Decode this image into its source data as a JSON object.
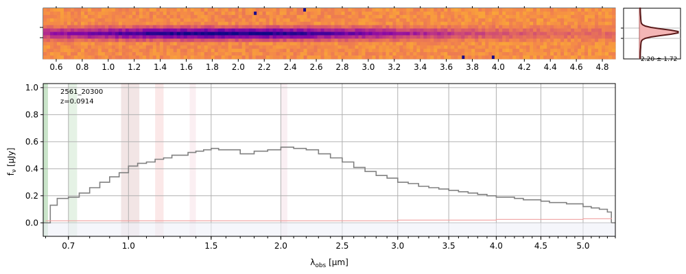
{
  "chart_data": [
    {
      "type": "heatmap",
      "panel": "2d-spectrum",
      "x_tick_labels": [
        "0.6",
        "0.8",
        "1.0",
        "1.2",
        "1.4",
        "1.6",
        "1.8",
        "2.0",
        "2.2",
        "2.4",
        "2.6",
        "2.8",
        "3.0",
        "3.2",
        "3.4",
        "3.6",
        "3.8",
        "4.0",
        "4.2",
        "4.4",
        "4.6",
        "4.8"
      ],
      "x_tick_values": [
        0.6,
        0.8,
        1.0,
        1.2,
        1.4,
        1.6,
        1.8,
        2.0,
        2.2,
        2.4,
        2.6,
        2.8,
        3.0,
        3.2,
        3.4,
        3.6,
        3.8,
        4.0,
        4.2,
        4.4,
        4.6,
        4.8
      ],
      "xlim": [
        0.5,
        4.9
      ],
      "colormap": "plasma",
      "trace_peak_at": 1.9
    },
    {
      "type": "area",
      "panel": "profile",
      "annotation": "2.20 ± 1.72",
      "fill_color": "#f4b6b6",
      "line_color": "#5a1a1a"
    },
    {
      "type": "line",
      "panel": "1d-spectrum",
      "label_id": "2561_20300",
      "label_z": "z=0.0914",
      "ylabel_f": "f",
      "ylabel_sub": "ν",
      "ylabel_unit": "[μJy]",
      "xlabel_sym": "λ",
      "xlabel_sub": "obs",
      "xlabel_unit": "[μm]",
      "y_ticks": [
        "0.0",
        "0.2",
        "0.4",
        "0.6",
        "0.8",
        "1.0"
      ],
      "y_tick_values": [
        0.0,
        0.2,
        0.4,
        0.6,
        0.8,
        1.0
      ],
      "ylim": [
        -0.1,
        1.03
      ],
      "x_ticks": [
        "0.7",
        "1.0",
        "1.5",
        "2.0",
        "2.5",
        "3.0",
        "3.5",
        "4.0",
        "4.5",
        "5.0"
      ],
      "x_tick_values": [
        0.7,
        1.0,
        1.5,
        2.0,
        2.5,
        3.0,
        3.5,
        4.0,
        4.5,
        5.0
      ],
      "xlim": [
        0.59,
        5.4
      ],
      "scale": "sqrt-wavelength",
      "series": [
        {
          "color": "#808080",
          "x": [
            0.6,
            0.62,
            0.65,
            0.7,
            0.75,
            0.8,
            0.85,
            0.9,
            0.95,
            1.0,
            1.05,
            1.1,
            1.15,
            1.2,
            1.25,
            1.3,
            1.35,
            1.4,
            1.45,
            1.5,
            1.55,
            1.6,
            1.7,
            1.8,
            1.9,
            2.0,
            2.1,
            2.2,
            2.3,
            2.4,
            2.5,
            2.6,
            2.7,
            2.8,
            2.9,
            3.0,
            3.1,
            3.2,
            3.3,
            3.4,
            3.5,
            3.6,
            3.7,
            3.8,
            3.9,
            4.0,
            4.1,
            4.2,
            4.3,
            4.4,
            4.5,
            4.6,
            4.7,
            4.8,
            4.9,
            5.0,
            5.1,
            5.2,
            5.3,
            5.35
          ],
          "y": [
            0.0,
            0.13,
            0.18,
            0.19,
            0.22,
            0.26,
            0.3,
            0.34,
            0.37,
            0.42,
            0.44,
            0.45,
            0.47,
            0.48,
            0.5,
            0.5,
            0.52,
            0.53,
            0.54,
            0.55,
            0.54,
            0.54,
            0.51,
            0.53,
            0.54,
            0.56,
            0.55,
            0.54,
            0.51,
            0.48,
            0.45,
            0.41,
            0.38,
            0.35,
            0.33,
            0.3,
            0.29,
            0.27,
            0.26,
            0.25,
            0.24,
            0.23,
            0.22,
            0.21,
            0.2,
            0.19,
            0.19,
            0.18,
            0.17,
            0.17,
            0.16,
            0.15,
            0.15,
            0.14,
            0.14,
            0.12,
            0.11,
            0.1,
            0.08,
            0.0
          ]
        },
        {
          "color": "#f0a0a0",
          "x": [
            0.6,
            1.0,
            2.0,
            3.0,
            4.0,
            5.0,
            5.35
          ],
          "y": [
            0.015,
            0.015,
            0.015,
            0.02,
            0.025,
            0.03,
            0.035
          ]
        }
      ],
      "shaded_bands": [
        {
          "x0": 0.59,
          "x1": 0.61,
          "color": "#9ecf9e"
        },
        {
          "x0": 0.7,
          "x1": 0.74,
          "color": "#cfe8cf"
        },
        {
          "x0": 0.96,
          "x1": 1.06,
          "color": "#e8cfcf"
        },
        {
          "x0": 1.15,
          "x1": 1.2,
          "color": "#f7d6d6"
        },
        {
          "x0": 1.36,
          "x1": 1.4,
          "color": "#f8e2e8"
        },
        {
          "x0": 2.0,
          "x1": 2.05,
          "color": "#f6e2ea"
        }
      ],
      "grid": true
    }
  ]
}
